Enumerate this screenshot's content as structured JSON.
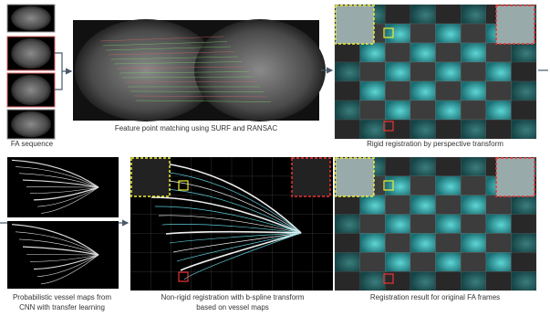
{
  "panels": {
    "fa_sequence": {
      "caption": [
        "FA sequence"
      ]
    },
    "feature_matching": {
      "caption": [
        "Feature point matching using SURF and RANSAC"
      ]
    },
    "rigid": {
      "caption": [
        "Rigid registration by perspective transform"
      ]
    },
    "vessel_maps": {
      "caption": [
        "Probabilistic vessel maps from",
        "CNN with transfer learning"
      ]
    },
    "non_rigid": {
      "caption": [
        "Non-rigid registration with b-spline transform",
        "based on vessel maps"
      ]
    },
    "result": {
      "caption": [
        "Registration result for original FA frames"
      ]
    }
  }
}
